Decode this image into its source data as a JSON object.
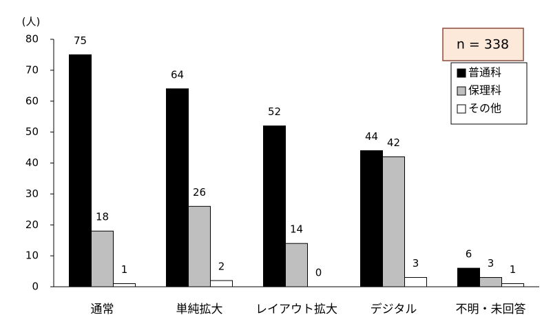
{
  "chart_data": {
    "type": "bar",
    "y_label": "(人)",
    "annotation": "n = 338",
    "categories": [
      "通常",
      "単純拡大",
      "レイアウト拡大",
      "デジタル",
      "不明・未回答"
    ],
    "series": [
      {
        "name": "普通科",
        "color": "#000000",
        "values": [
          75,
          64,
          52,
          44,
          6
        ]
      },
      {
        "name": "保理科",
        "color": "#bfbfbf",
        "values": [
          18,
          26,
          14,
          42,
          3
        ]
      },
      {
        "name": "その他",
        "color": "#ffffff",
        "values": [
          1,
          2,
          0,
          3,
          1
        ]
      }
    ],
    "ylim": [
      0,
      80
    ],
    "yticks": [
      0,
      10,
      20,
      30,
      40,
      50,
      60,
      70,
      80
    ],
    "grid": false,
    "legend_position": "top-right",
    "show_value_labels": true
  }
}
